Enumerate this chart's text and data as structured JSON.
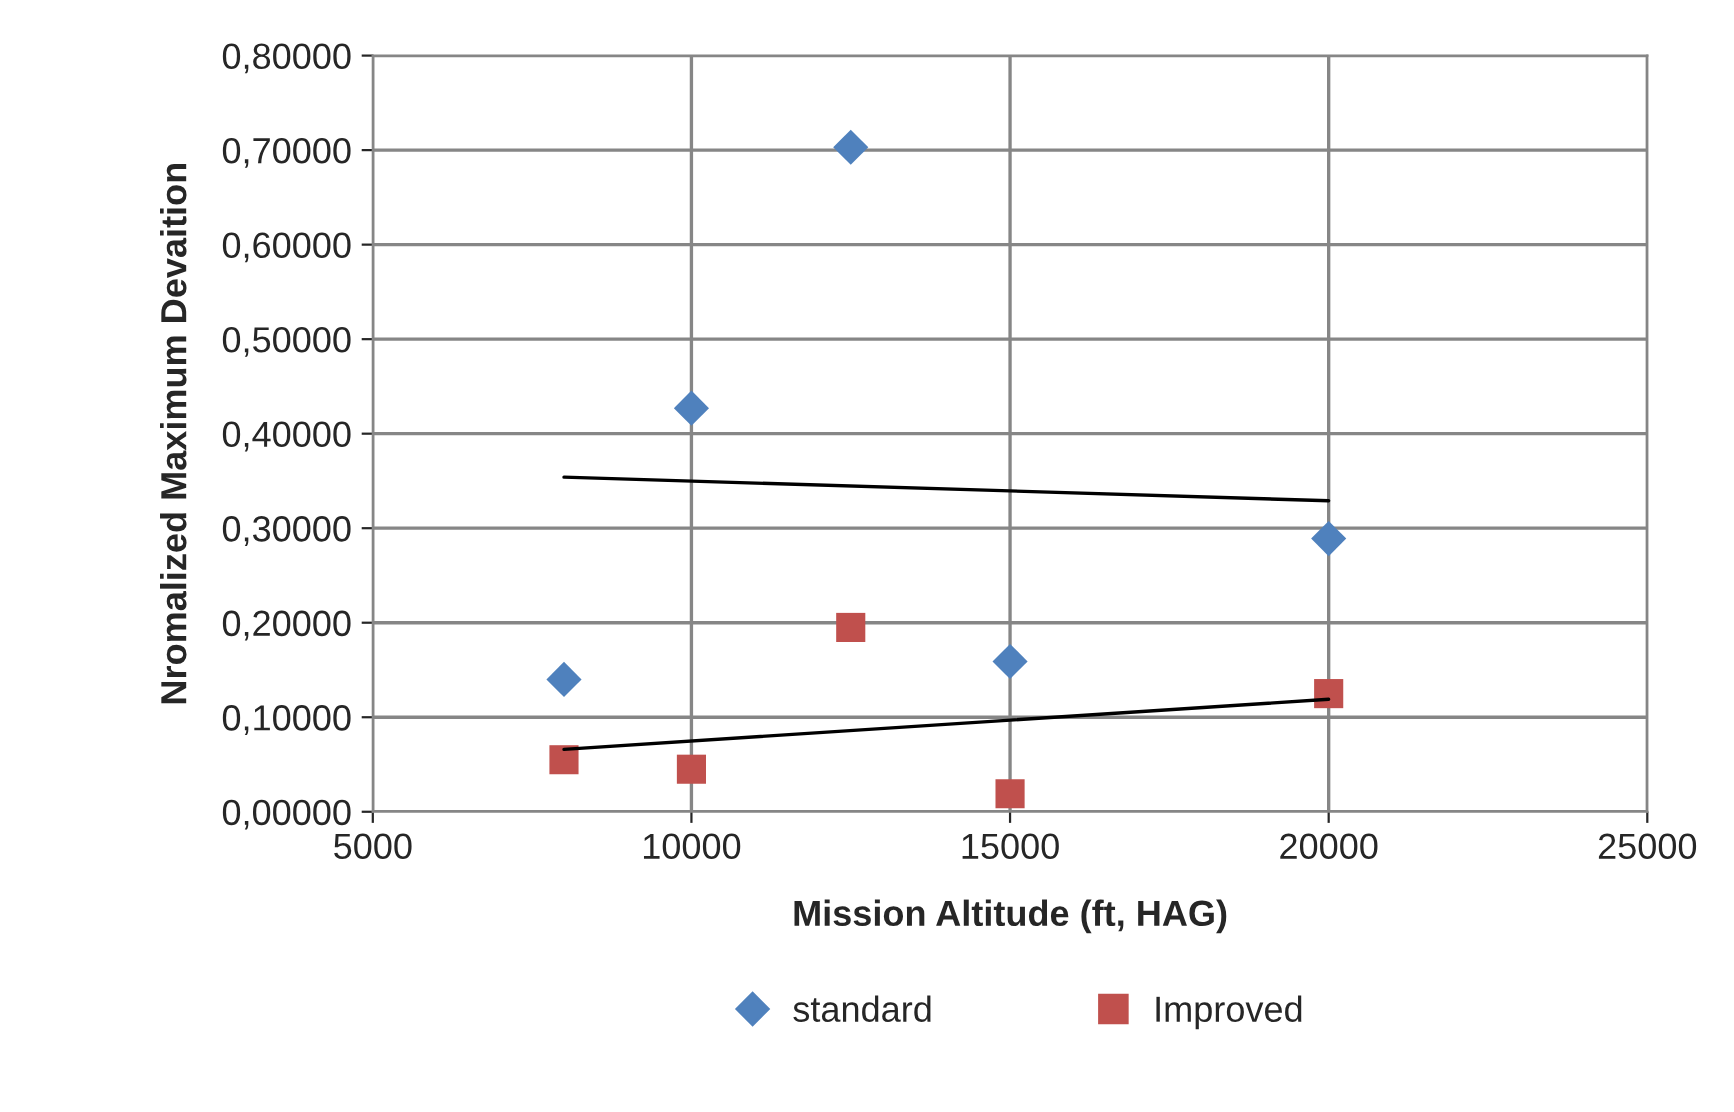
{
  "chart_data": {
    "type": "scatter",
    "xlabel": "Mission Altitude (ft, HAG)",
    "ylabel": "Nromalized Maximum Devaition",
    "series": [
      {
        "name": "standard",
        "color": "#4f81bd",
        "marker": "diamond",
        "x": [
          8000,
          10000,
          12500,
          15000,
          20000
        ],
        "values": [
          0.14,
          0.427,
          0.703,
          0.159,
          0.289
        ]
      },
      {
        "name": "Improved",
        "color": "#c0504d",
        "marker": "square",
        "x": [
          8000,
          10000,
          12500,
          15000,
          20000
        ],
        "values": [
          0.055,
          0.045,
          0.195,
          0.019,
          0.125
        ]
      },
      {
        "type": "line",
        "color": "#000000",
        "marker": "none",
        "x": [
          8000,
          20000
        ],
        "values": [
          0.354,
          0.329
        ]
      },
      {
        "type": "line",
        "color": "#000000",
        "marker": "none",
        "x": [
          8000,
          20000
        ],
        "values": [
          0.066,
          0.119
        ]
      }
    ],
    "xlim": [
      5000,
      25000
    ],
    "xticks": [
      5000,
      10000,
      15000,
      20000,
      25000
    ],
    "ylim": [
      0,
      0.8
    ],
    "yticks": [
      {
        "value": 0,
        "label": "0,00000"
      },
      {
        "value": 0.1,
        "label": "0,10000"
      },
      {
        "value": 0.2,
        "label": "0,20000"
      },
      {
        "value": 0.3,
        "label": "0,30000"
      },
      {
        "value": 0.4,
        "label": "0,40000"
      },
      {
        "value": 0.5,
        "label": "0,50000"
      },
      {
        "value": 0.6,
        "label": "0,60000"
      },
      {
        "value": 0.7,
        "label": "0,70000"
      },
      {
        "value": 0.8,
        "label": "0,80000"
      }
    ],
    "grid": true,
    "legend": "bottom"
  }
}
